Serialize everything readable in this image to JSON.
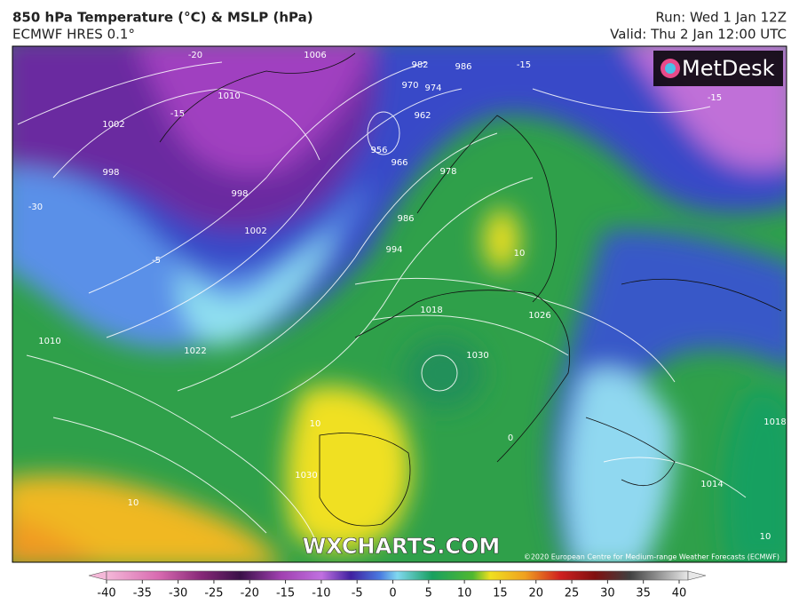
{
  "header": {
    "title": "850 hPa Temperature (°C) & MSLP (hPa)",
    "subtitle": "ECMWF HRES 0.1°",
    "run": "Run: Wed 1 Jan 12Z",
    "valid": "Valid: Thu 2 Jan 12:00 UTC"
  },
  "logo": "MetDesk",
  "watermark": "WXCHARTS.COM",
  "copyright": "©2020 European Centre for Medium-range Weather Forecasts (ECMWF)",
  "contour_labels": [
    -20,
    1006,
    982,
    986,
    -15,
    1010,
    974,
    970,
    -15,
    1002,
    998,
    -15,
    962,
    956,
    966,
    978,
    986,
    994,
    998,
    1002,
    -5,
    1018,
    1026,
    1030,
    1010,
    1022,
    10,
    10,
    1030,
    0,
    10,
    1014,
    1018,
    10,
    -30
  ],
  "colorbar": {
    "ticks": [
      -40,
      -35,
      -30,
      -25,
      -20,
      -15,
      -10,
      -5,
      0,
      5,
      10,
      15,
      20,
      25,
      30,
      35,
      40
    ]
  }
}
